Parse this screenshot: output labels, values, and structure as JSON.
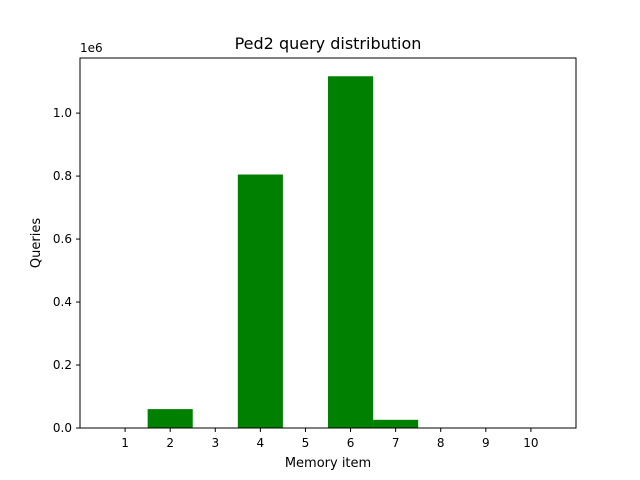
{
  "chart_data": {
    "type": "bar",
    "title": "Ped2 query distribution",
    "xlabel": "Memory item",
    "ylabel": "Queries",
    "offset_text": "1e6",
    "categories": [
      "1",
      "2",
      "3",
      "4",
      "5",
      "6",
      "7",
      "8",
      "9",
      "10"
    ],
    "values": [
      0,
      60000,
      0,
      805000,
      0,
      1117000,
      26000,
      0,
      0,
      0
    ],
    "y_ticks": [
      "0.0",
      "0.2",
      "0.4",
      "0.6",
      "0.8",
      "1.0"
    ],
    "y_tick_values": [
      0,
      200000,
      400000,
      600000,
      800000,
      1000000
    ],
    "ylim": [
      0,
      1175000
    ],
    "grid": false,
    "colors": {
      "bar": "#008000"
    }
  }
}
